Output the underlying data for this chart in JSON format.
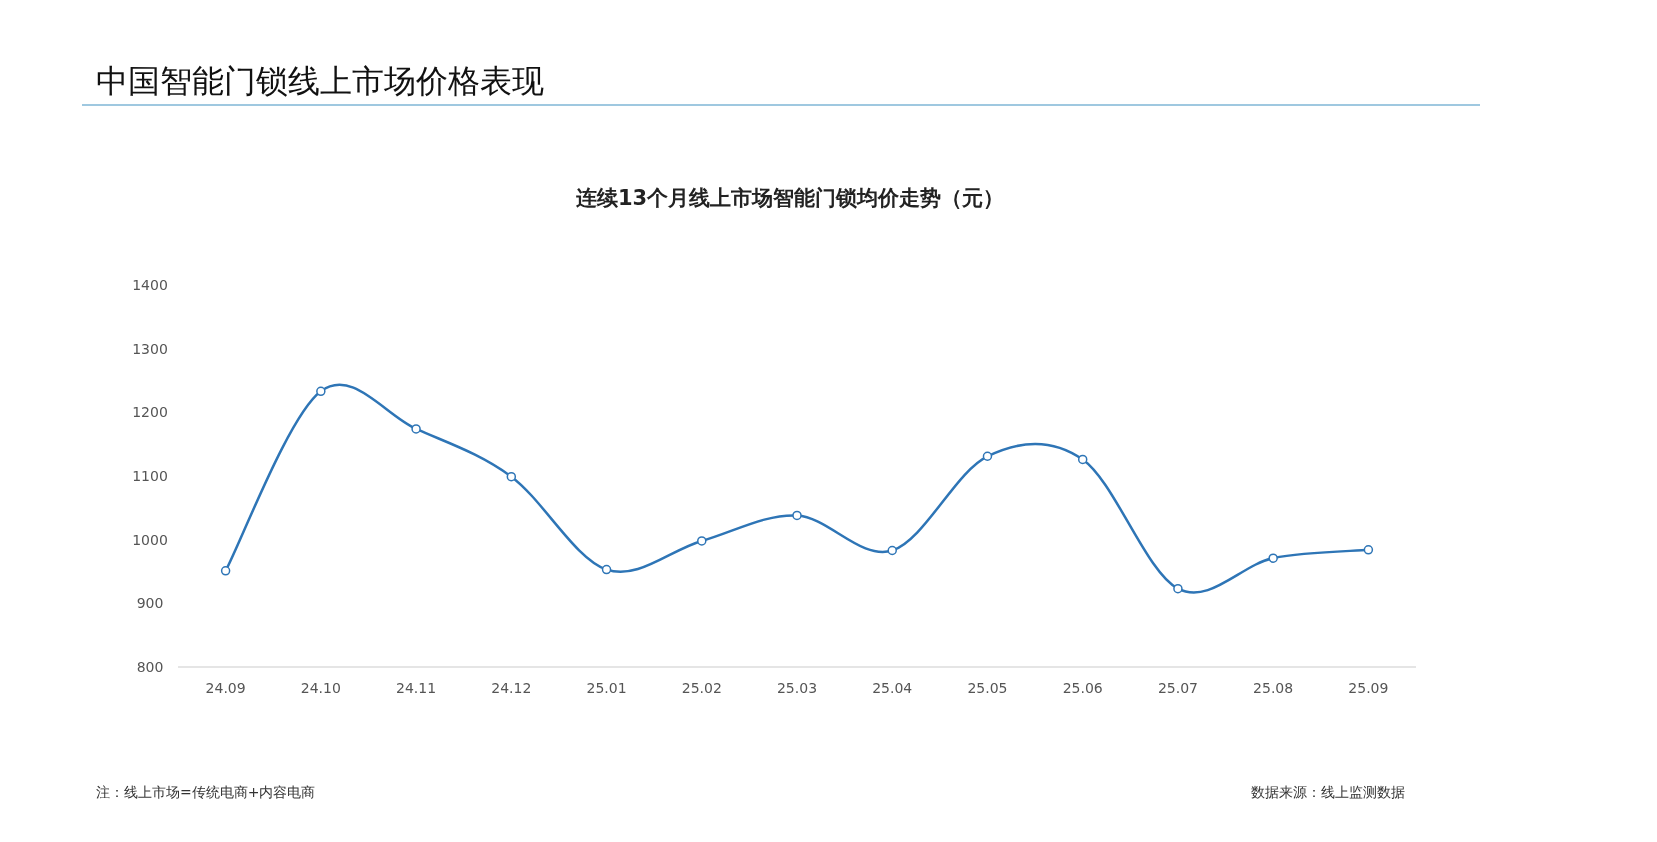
{
  "chart_data": {
    "type": "line",
    "title": "中国智能门锁线上市场价格表现",
    "subtitle": "连续13个月线上市场智能门锁均价走势（元）",
    "categories": [
      "24.09",
      "24.10",
      "24.11",
      "24.12",
      "25.01",
      "25.02",
      "25.03",
      "25.04",
      "25.05",
      "25.06",
      "25.07",
      "25.08",
      "25.09"
    ],
    "series": [
      {
        "color": "#2e75b6",
        "values": [
          951,
          1233,
          1174,
          1099,
          953,
          998,
          1038,
          983,
          1131,
          1126,
          923,
          971,
          984
        ]
      }
    ],
    "ylim": [
      800,
      1400
    ],
    "yticks": [
      800,
      900,
      1000,
      1100,
      1200,
      1300,
      1400
    ],
    "marker": "circle",
    "line_style": "solid",
    "annotations": [
      "注：线上市场=传统电商+内容电商",
      "数据来源：线上监测数据"
    ]
  }
}
